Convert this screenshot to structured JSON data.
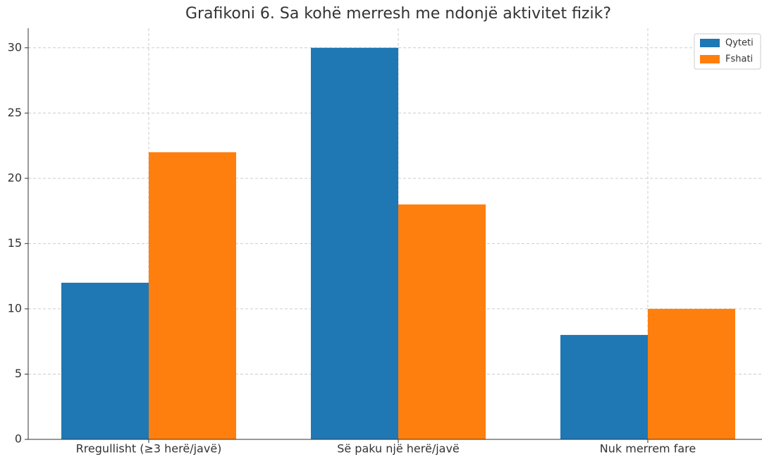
{
  "chart_data": {
    "type": "bar",
    "title": "Grafikoni 6. Sa kohë merresh me ndonjë aktivitet fizik?",
    "categories": [
      "Rregullisht (≥3 herë/javë)",
      "Së paku një herë/javë",
      "Nuk merrem fare"
    ],
    "series": [
      {
        "name": "Qyteti",
        "color": "#1f77b4",
        "values": [
          12,
          30,
          8
        ]
      },
      {
        "name": "Fshati",
        "color": "#ff7f0e",
        "values": [
          22,
          18,
          10
        ]
      }
    ],
    "ylim": [
      0,
      31.5
    ],
    "yticks": [
      0,
      5,
      10,
      15,
      20,
      25,
      30
    ],
    "grid": true,
    "legend": "upper right"
  }
}
